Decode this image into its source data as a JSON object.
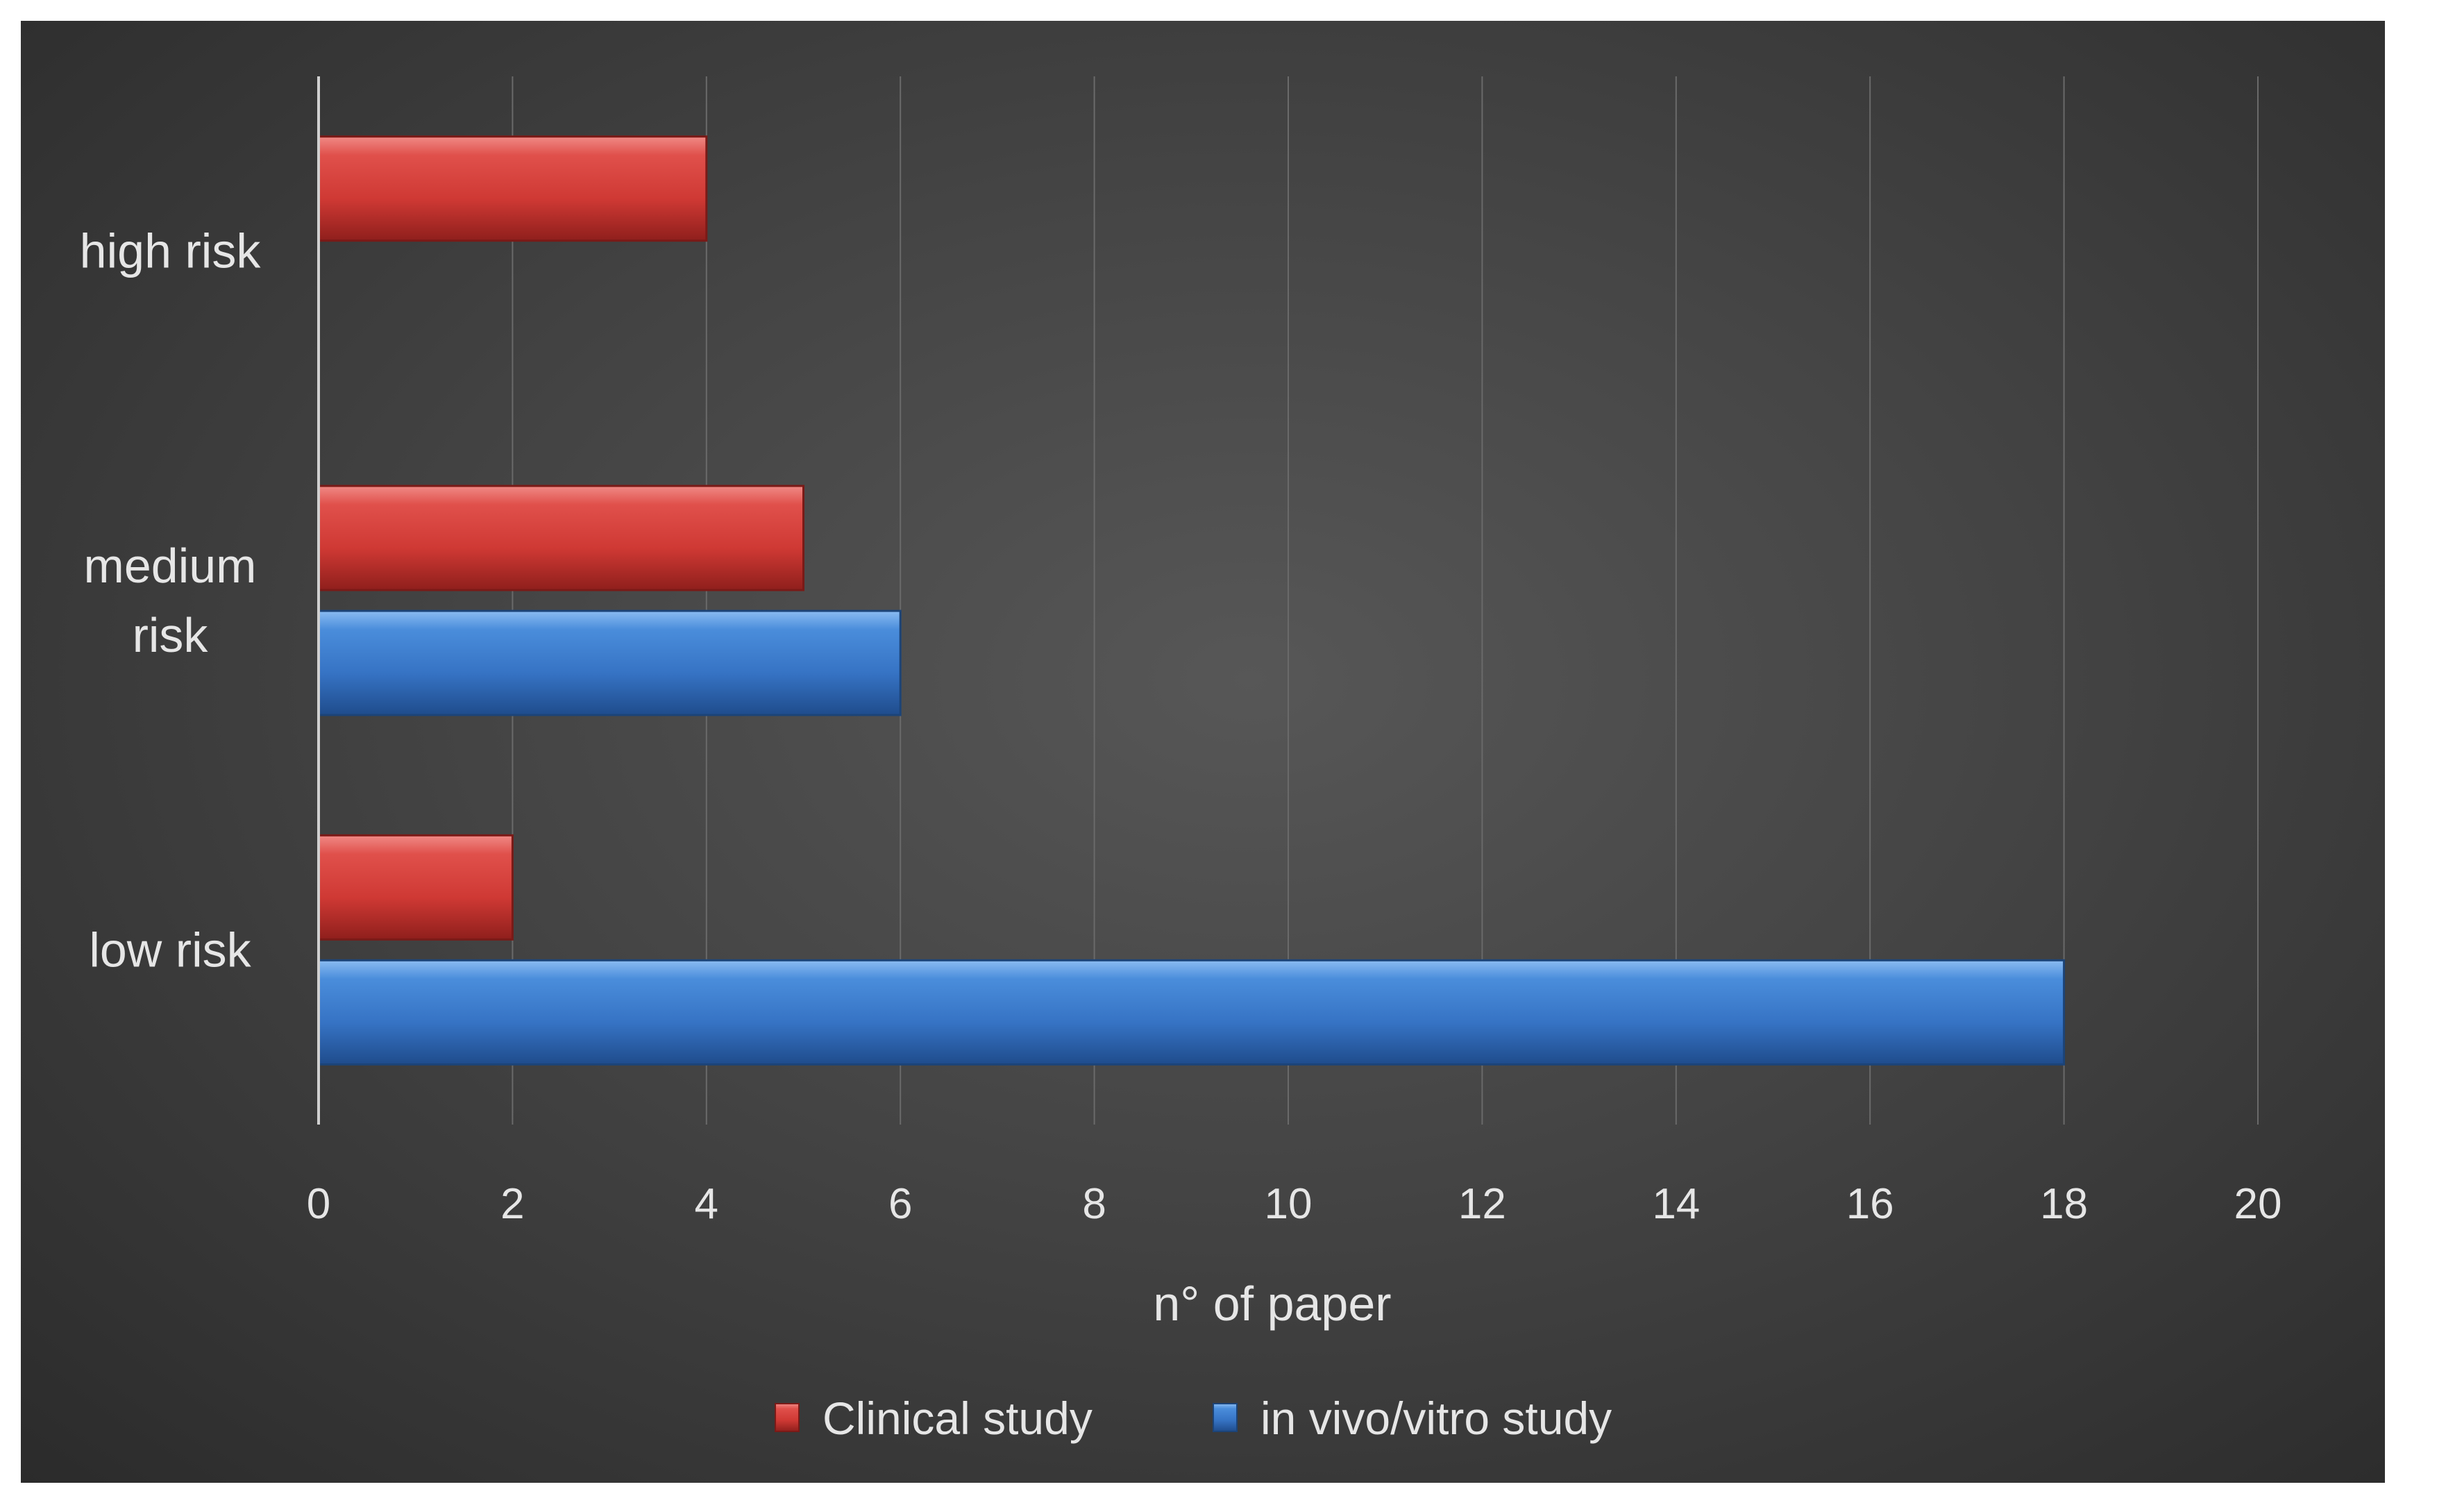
{
  "chart_data": {
    "type": "bar",
    "orientation": "horizontal",
    "categories": [
      "high risk",
      "medium risk",
      "low risk"
    ],
    "category_lines": [
      [
        "high risk"
      ],
      [
        "medium",
        "risk"
      ],
      [
        "low risk"
      ]
    ],
    "series": [
      {
        "name": "Clinical study",
        "values": [
          4,
          5,
          2
        ]
      },
      {
        "name": "in vivo/vitro study",
        "values": [
          null,
          6,
          18
        ]
      }
    ],
    "xlabel": "n° of paper",
    "ylabel": "",
    "xlim": [
      0,
      20
    ],
    "xticks": [
      0,
      2,
      4,
      6,
      8,
      10,
      12,
      14,
      16,
      18,
      20
    ],
    "grid": true,
    "legend_position": "bottom",
    "colors": {
      "Clinical study": "#d9413d",
      "in vivo/vitro study": "#3f80d0"
    }
  }
}
